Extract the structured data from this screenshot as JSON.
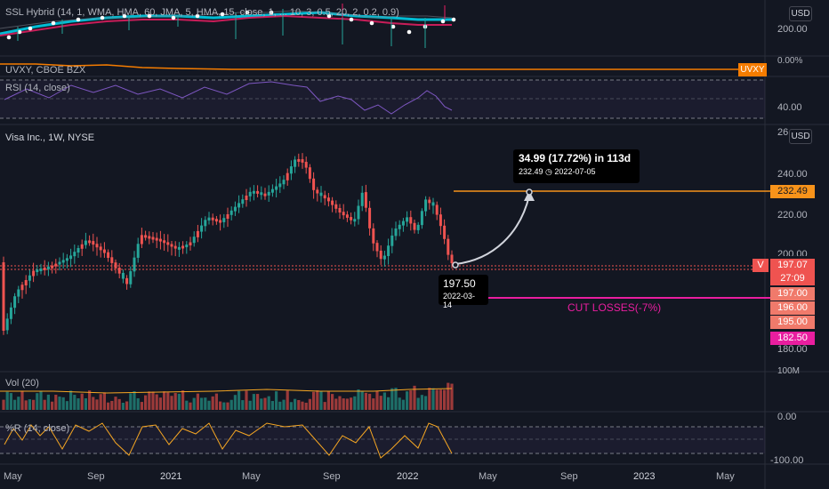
{
  "panes": {
    "ssl": {
      "title": "SSL Hybrid (14, 1, WMA, HMA, 60, JMA, 5, HMA, 15, close, 1, ... 10, 3, 0.5, 20, 2, 0.2, 0.9)",
      "axis": [
        "200.00"
      ],
      "usd": "USD"
    },
    "uvxy": {
      "title": "UVXY, CBOE BZX",
      "tag": "UVXY",
      "axis_top": "0.00%"
    },
    "rsi": {
      "title": "RSI (14, close)",
      "axis": [
        "40.00"
      ]
    },
    "main": {
      "title": "Visa Inc., 1W, NYSE",
      "usd": "USD",
      "axis": [
        "240.00",
        "220.00",
        "200.00",
        "180.00"
      ]
    },
    "vol": {
      "title": "Vol (20)",
      "axis": [
        "100M"
      ]
    },
    "wr": {
      "title": "%R (14, close)",
      "axis": [
        "0.00",
        "-100.00"
      ]
    }
  },
  "price_tags": {
    "symbol": "V",
    "target": "232.49",
    "current": "197.07",
    "countdown": "27:09",
    "p197": "197.00",
    "p196": "196.00",
    "p195": "195.00",
    "stop": "182.50",
    "top_partial": "26"
  },
  "annotations": {
    "gain_title": "34.99 (17.72%) in 113d",
    "gain_price": "232.49",
    "gain_date": "2022-07-05",
    "entry_price": "197.50",
    "entry_date": "2022-03-14",
    "cut_losses": "CUT LOSSES(-7%)"
  },
  "time_axis": [
    "May",
    "Sep",
    "2021",
    "May",
    "Sep",
    "2022",
    "May",
    "Sep",
    "2023",
    "May"
  ],
  "colors": {
    "background": "#131722",
    "up": "#26a69a",
    "down": "#ef5350",
    "target_line": "#f7931a",
    "stop_line": "#e91e9f",
    "rsi_line": "#7e57c2",
    "wr_line": "#f5a623",
    "uvxy_line": "#f57c00"
  }
}
